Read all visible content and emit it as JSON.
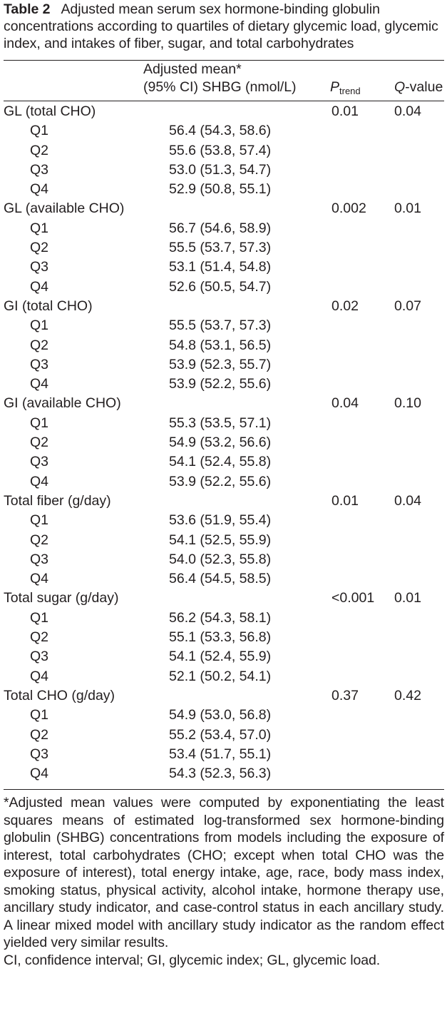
{
  "caption": {
    "label": "Table 2",
    "text": "Adjusted mean serum sex hormone-binding globulin concentrations according to quartiles of dietary glycemic load, glycemic index, and intakes of fiber, sugar, and total carbohydrates"
  },
  "header": {
    "mean_line1": "Adjusted mean*",
    "mean_line2": "(95% CI) SHBG (nmol/L)",
    "p_letter": "P",
    "p_sub": "trend",
    "q_italic": "Q",
    "q_rest": "-value"
  },
  "groups": [
    {
      "label": "GL (total CHO)",
      "p": "0.01",
      "q": "0.04",
      "rows": [
        [
          "Q1",
          "56.4 (54.3, 58.6)"
        ],
        [
          "Q2",
          "55.6 (53.8, 57.4)"
        ],
        [
          "Q3",
          "53.0 (51.3, 54.7)"
        ],
        [
          "Q4",
          "52.9 (50.8, 55.1)"
        ]
      ]
    },
    {
      "label": "GL (available CHO)",
      "p": "0.002",
      "q": "0.01",
      "rows": [
        [
          "Q1",
          "56.7 (54.6, 58.9)"
        ],
        [
          "Q2",
          "55.5 (53.7, 57.3)"
        ],
        [
          "Q3",
          "53.1 (51.4, 54.8)"
        ],
        [
          "Q4",
          "52.6 (50.5, 54.7)"
        ]
      ]
    },
    {
      "label": "GI (total CHO)",
      "p": "0.02",
      "q": "0.07",
      "rows": [
        [
          "Q1",
          "55.5 (53.7, 57.3)"
        ],
        [
          "Q2",
          "54.8 (53.1, 56.5)"
        ],
        [
          "Q3",
          "53.9 (52.3, 55.7)"
        ],
        [
          "Q4",
          "53.9 (52.2, 55.6)"
        ]
      ]
    },
    {
      "label": "GI (available CHO)",
      "p": "0.04",
      "q": "0.10",
      "rows": [
        [
          "Q1",
          "55.3 (53.5, 57.1)"
        ],
        [
          "Q2",
          "54.9 (53.2, 56.6)"
        ],
        [
          "Q3",
          "54.1 (52.4, 55.8)"
        ],
        [
          "Q4",
          "53.9 (52.2, 55.6)"
        ]
      ]
    },
    {
      "label": "Total fiber (g/day)",
      "p": "0.01",
      "q": "0.04",
      "rows": [
        [
          "Q1",
          "53.6 (51.9, 55.4)"
        ],
        [
          "Q2",
          "54.1 (52.5, 55.9)"
        ],
        [
          "Q3",
          "54.0 (52.3, 55.8)"
        ],
        [
          "Q4",
          "56.4 (54.5, 58.5)"
        ]
      ]
    },
    {
      "label": "Total sugar (g/day)",
      "p": "<0.001",
      "q": "0.01",
      "rows": [
        [
          "Q1",
          "56.2 (54.3, 58.1)"
        ],
        [
          "Q2",
          "55.1 (53.3, 56.8)"
        ],
        [
          "Q3",
          "54.1 (52.4, 55.9)"
        ],
        [
          "Q4",
          "52.1 (50.2, 54.1)"
        ]
      ]
    },
    {
      "label": "Total CHO (g/day)",
      "p": "0.37",
      "q": "0.42",
      "rows": [
        [
          "Q1",
          "54.9 (53.0, 56.8)"
        ],
        [
          "Q2",
          "55.2 (53.4, 57.0)"
        ],
        [
          "Q3",
          "53.4 (51.7, 55.1)"
        ],
        [
          "Q4",
          "54.3 (52.3, 56.3)"
        ]
      ]
    }
  ],
  "footnotes": {
    "main": "*Adjusted mean values were computed by exponentiating the least squares means of estimated log-transformed sex hormone-binding globulin (SHBG) concentrations from models including the exposure of interest, total carbohydrates (CHO; except when total CHO was the exposure of interest), total energy intake, age, race, body mass index, smoking status, physical activity, alcohol intake, hormone therapy use, ancillary study indicator, and case-control status in each ancillary study. A linear mixed model with ancillary study indicator as the random effect yielded very similar results.",
    "abbreviations": "CI, confidence interval; GI, glycemic index; GL, glycemic load."
  }
}
